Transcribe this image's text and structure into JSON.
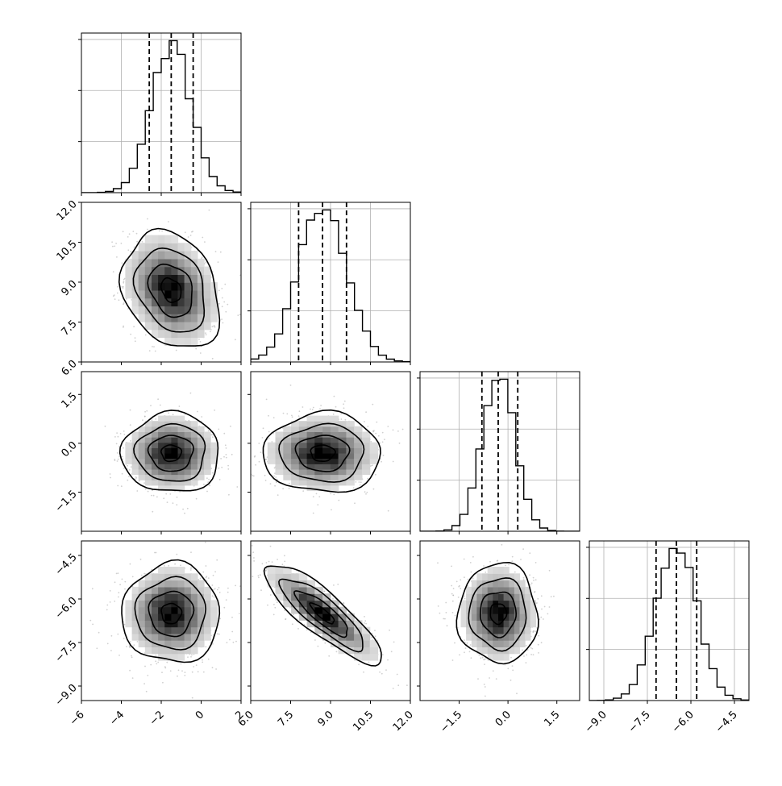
{
  "chart_data": {
    "type": "corner",
    "parameters": [
      {
        "name": "",
        "range": [
          -6,
          2
        ],
        "ticks": [
          -6,
          -4,
          -2,
          0,
          2
        ],
        "tick_labels": [
          "−6",
          "−4",
          "−2",
          "0",
          "2"
        ],
        "quantiles": [
          -2.6,
          -1.5,
          -0.4
        ],
        "mean": -1.5,
        "sd": 1.0
      },
      {
        "name": "",
        "range": [
          6,
          12
        ],
        "ticks": [
          6.0,
          7.5,
          9.0,
          10.5,
          12.0
        ],
        "tick_labels": [
          "6.0",
          "7.5",
          "9.0",
          "10.5",
          "12.0"
        ],
        "quantiles": [
          7.8,
          8.7,
          9.6
        ],
        "mean": 8.7,
        "sd": 0.9
      },
      {
        "name": "",
        "range": [
          -2.7,
          2.2
        ],
        "ticks": [
          -1.5,
          0.0,
          1.5
        ],
        "tick_labels": [
          "−1.5",
          "0.0",
          "1.5"
        ],
        "quantiles": [
          -0.8,
          -0.3,
          0.3
        ],
        "mean": -0.3,
        "sd": 0.5
      },
      {
        "name": "",
        "range": [
          -9.5,
          -4.0
        ],
        "ticks": [
          -9.0,
          -7.5,
          -6.0,
          -4.5
        ],
        "tick_labels": [
          "−9.0",
          "−7.5",
          "−6.0",
          "−4.5"
        ],
        "quantiles": [
          -7.2,
          -6.5,
          -5.8
        ],
        "mean": -6.5,
        "sd": 0.7
      }
    ],
    "correlations": {
      "1-0": -0.25,
      "2-0": 0.0,
      "2-1": 0.0,
      "3-0": 0.0,
      "3-1": -0.85,
      "3-2": 0.0
    },
    "histogram_bins": 20,
    "contour_levels": 4,
    "grid": true,
    "colors": {
      "line": "#000000",
      "density_dark": "#000000",
      "density_light": "#f2f2f2",
      "scatter": "#b0b0b0",
      "grid": "#b0b0b0"
    }
  }
}
